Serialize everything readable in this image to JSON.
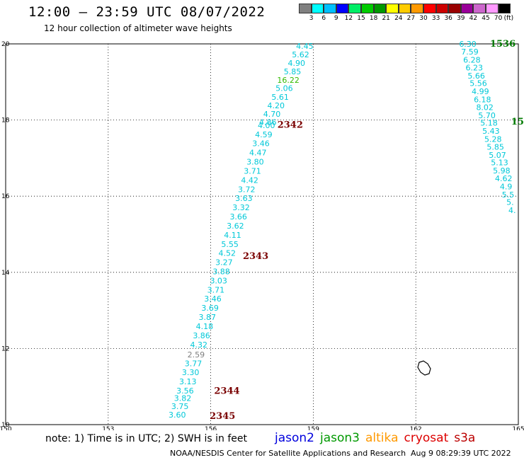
{
  "header": {
    "title": "12:00 — 23:59 UTC 08/07/2022",
    "subtitle": "12 hour collection of altimeter wave heights"
  },
  "colorbar": {
    "colors": [
      "#808080",
      "#00ffff",
      "#00bfff",
      "#0000ff",
      "#00ee66",
      "#00cc00",
      "#009900",
      "#ffff00",
      "#ffcc00",
      "#ff9900",
      "#ff0000",
      "#cc0000",
      "#990000",
      "#990099",
      "#cc66cc",
      "#ff99ff",
      "#000000"
    ],
    "labels": [
      "3",
      "6",
      "9",
      "12",
      "15",
      "18",
      "21",
      "24",
      "27",
      "30",
      "33",
      "36",
      "39",
      "42",
      "45",
      "70",
      "(ft)"
    ]
  },
  "axes": {
    "lon_range": [
      150,
      165
    ],
    "lat_range": [
      10,
      20
    ],
    "lon_ticks": [
      "150",
      "153",
      "156",
      "159",
      "162",
      "165"
    ],
    "lat_ticks": [
      "20",
      "18",
      "16",
      "14",
      "12",
      "10"
    ],
    "grid": true
  },
  "track1": {
    "wave_heights": [
      {
        "lat": 19.87,
        "lon": 158.75,
        "v": "4.45",
        "c": "#00c8d8"
      },
      {
        "lat": 19.65,
        "lon": 158.63,
        "v": "5.62",
        "c": "#00c8d8"
      },
      {
        "lat": 19.42,
        "lon": 158.51,
        "v": "4.90",
        "c": "#00c8d8"
      },
      {
        "lat": 19.2,
        "lon": 158.39,
        "v": "5.85",
        "c": "#00c8d8"
      },
      {
        "lat": 18.98,
        "lon": 158.27,
        "v": "16.22",
        "c": "#33bb00"
      },
      {
        "lat": 18.76,
        "lon": 158.15,
        "v": "5.06",
        "c": "#00c8d8"
      },
      {
        "lat": 18.53,
        "lon": 158.03,
        "v": "5.61",
        "c": "#00c8d8"
      },
      {
        "lat": 18.31,
        "lon": 157.91,
        "v": "4.20",
        "c": "#00c8d8"
      },
      {
        "lat": 18.09,
        "lon": 157.79,
        "v": "4.70",
        "c": "#00c8d8"
      },
      {
        "lat": 17.87,
        "lon": 157.67,
        "v": "4.86",
        "c": "#00c8d8"
      },
      {
        "lat": 17.79,
        "lon": 157.63,
        "v": "4.00",
        "c": "#00c8d8"
      },
      {
        "lat": 17.55,
        "lon": 157.55,
        "v": "4.59",
        "c": "#00c8d8"
      },
      {
        "lat": 17.31,
        "lon": 157.47,
        "v": "3.46",
        "c": "#00c8d8"
      },
      {
        "lat": 17.07,
        "lon": 157.38,
        "v": "4.47",
        "c": "#00c8d8"
      },
      {
        "lat": 16.83,
        "lon": 157.3,
        "v": "3.80",
        "c": "#00c8d8"
      },
      {
        "lat": 16.59,
        "lon": 157.22,
        "v": "3.71",
        "c": "#00c8d8"
      },
      {
        "lat": 16.35,
        "lon": 157.14,
        "v": "4.42",
        "c": "#00c8d8"
      },
      {
        "lat": 16.11,
        "lon": 157.05,
        "v": "3.72",
        "c": "#00c8d8"
      },
      {
        "lat": 15.87,
        "lon": 156.97,
        "v": "3.63",
        "c": "#00c8d8"
      },
      {
        "lat": 15.63,
        "lon": 156.89,
        "v": "3.32",
        "c": "#00c8d8"
      },
      {
        "lat": 15.39,
        "lon": 156.81,
        "v": "3.66",
        "c": "#00c8d8"
      },
      {
        "lat": 15.15,
        "lon": 156.72,
        "v": "3.62",
        "c": "#00c8d8"
      },
      {
        "lat": 14.91,
        "lon": 156.64,
        "v": "4.11",
        "c": "#00c8d8"
      },
      {
        "lat": 14.67,
        "lon": 156.56,
        "v": "5.55",
        "c": "#00c8d8"
      },
      {
        "lat": 14.43,
        "lon": 156.48,
        "v": "4.52",
        "c": "#00c8d8"
      },
      {
        "lat": 14.19,
        "lon": 156.39,
        "v": "3.27",
        "c": "#00c8d8"
      },
      {
        "lat": 13.95,
        "lon": 156.31,
        "v": "3.88",
        "c": "#00c8d8"
      },
      {
        "lat": 13.71,
        "lon": 156.23,
        "v": "3.03",
        "c": "#00c8d8"
      },
      {
        "lat": 13.47,
        "lon": 156.15,
        "v": "3.71",
        "c": "#00c8d8"
      },
      {
        "lat": 13.23,
        "lon": 156.06,
        "v": "3.46",
        "c": "#00c8d8"
      },
      {
        "lat": 12.99,
        "lon": 155.98,
        "v": "3.69",
        "c": "#00c8d8"
      },
      {
        "lat": 12.75,
        "lon": 155.9,
        "v": "3.87",
        "c": "#00c8d8"
      },
      {
        "lat": 12.51,
        "lon": 155.82,
        "v": "4.18",
        "c": "#00c8d8"
      },
      {
        "lat": 12.27,
        "lon": 155.73,
        "v": "3.86",
        "c": "#00c8d8"
      },
      {
        "lat": 12.03,
        "lon": 155.65,
        "v": "4.32",
        "c": "#00c8d8"
      },
      {
        "lat": 11.77,
        "lon": 155.57,
        "v": "2.59",
        "c": "#808080"
      },
      {
        "lat": 11.53,
        "lon": 155.49,
        "v": "3.77",
        "c": "#00c8d8"
      },
      {
        "lat": 11.3,
        "lon": 155.41,
        "v": "3.30",
        "c": "#00c8d8"
      },
      {
        "lat": 11.06,
        "lon": 155.33,
        "v": "3.13",
        "c": "#00c8d8"
      },
      {
        "lat": 10.82,
        "lon": 155.25,
        "v": "3.56",
        "c": "#00c8d8"
      },
      {
        "lat": 10.62,
        "lon": 155.18,
        "v": "3.82",
        "c": "#00c8d8"
      },
      {
        "lat": 10.41,
        "lon": 155.1,
        "v": "3.75",
        "c": "#00c8d8"
      },
      {
        "lat": 10.19,
        "lon": 155.02,
        "v": "3.60",
        "c": "#00c8d8"
      }
    ],
    "time_labels": [
      {
        "lat": 17.8,
        "lon": 157.95,
        "v": "2342",
        "c": "#7a0000"
      },
      {
        "lat": 14.35,
        "lon": 156.94,
        "v": "2343",
        "c": "#7a0000"
      },
      {
        "lat": 10.81,
        "lon": 156.1,
        "v": "2344",
        "c": "#7a0000"
      },
      {
        "lat": 10.15,
        "lon": 155.97,
        "v": "2345",
        "c": "#7a0000"
      }
    ]
  },
  "track2": {
    "wave_heights": [
      {
        "lat": 19.93,
        "lon": 163.52,
        "v": "6.30",
        "c": "#00c8d8"
      },
      {
        "lat": 19.72,
        "lon": 163.58,
        "v": "7.59",
        "c": "#00c8d8"
      },
      {
        "lat": 19.51,
        "lon": 163.64,
        "v": "6.28",
        "c": "#00c8d8"
      },
      {
        "lat": 19.3,
        "lon": 163.71,
        "v": "6.23",
        "c": "#00c8d8"
      },
      {
        "lat": 19.09,
        "lon": 163.77,
        "v": "5.66",
        "c": "#00c8d8"
      },
      {
        "lat": 18.89,
        "lon": 163.83,
        "v": "5.56",
        "c": "#00c8d8"
      },
      {
        "lat": 18.68,
        "lon": 163.89,
        "v": "4.99",
        "c": "#00c8d8"
      },
      {
        "lat": 18.47,
        "lon": 163.95,
        "v": "6.18",
        "c": "#00c8d8"
      },
      {
        "lat": 18.26,
        "lon": 164.02,
        "v": "8.02",
        "c": "#00c8d8"
      },
      {
        "lat": 18.05,
        "lon": 164.08,
        "v": "5.70",
        "c": "#00c8d8"
      },
      {
        "lat": 17.85,
        "lon": 164.14,
        "v": "5.18",
        "c": "#00c8d8"
      },
      {
        "lat": 17.64,
        "lon": 164.2,
        "v": "5.43",
        "c": "#00c8d8"
      },
      {
        "lat": 17.43,
        "lon": 164.26,
        "v": "5.28",
        "c": "#00c8d8"
      },
      {
        "lat": 17.22,
        "lon": 164.33,
        "v": "5.85",
        "c": "#00c8d8"
      },
      {
        "lat": 17.01,
        "lon": 164.39,
        "v": "5.07",
        "c": "#00c8d8"
      },
      {
        "lat": 16.81,
        "lon": 164.45,
        "v": "5.13",
        "c": "#00c8d8"
      },
      {
        "lat": 16.6,
        "lon": 164.51,
        "v": "5.98",
        "c": "#00c8d8"
      },
      {
        "lat": 16.39,
        "lon": 164.57,
        "v": "4.62",
        "c": "#00c8d8"
      },
      {
        "lat": 16.18,
        "lon": 164.64,
        "v": "4.9",
        "c": "#00c8d8"
      },
      {
        "lat": 15.97,
        "lon": 164.7,
        "v": "5.5",
        "c": "#00c8d8"
      },
      {
        "lat": 15.77,
        "lon": 164.76,
        "v": "5.",
        "c": "#00c8d8"
      },
      {
        "lat": 15.56,
        "lon": 164.82,
        "v": "4.",
        "c": "#00c8d8"
      }
    ],
    "time_labels": [
      {
        "lat": 19.93,
        "lon": 164.17,
        "v": "1536",
        "c": "#007a00"
      },
      {
        "lat": 17.88,
        "lon": 164.79,
        "v": "15",
        "c": "#007a00"
      }
    ]
  },
  "notes": {
    "note": "note: 1) Time is in UTC; 2) SWH is in feet",
    "satellites": [
      {
        "name": "jason2",
        "color": "#0000dd"
      },
      {
        "name": "jason3",
        "color": "#009900"
      },
      {
        "name": "altika",
        "color": "#ff9900"
      },
      {
        "name": "cryosat",
        "color": "#dd0000"
      },
      {
        "name": "s3a",
        "color": "#bb0000"
      }
    ],
    "footer": "NOAA/NESDIS Center for Satellite Applications and Research",
    "footer_time": "Aug  9 08:29:39 UTC 2022"
  }
}
